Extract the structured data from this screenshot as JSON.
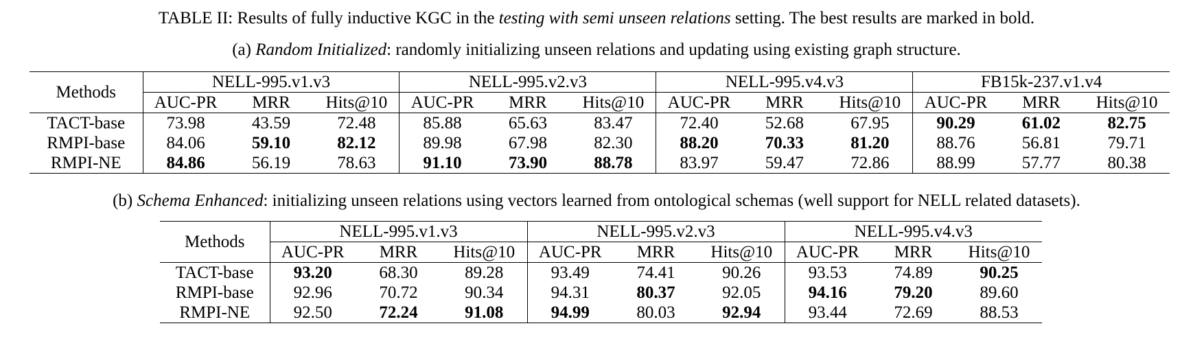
{
  "caption": {
    "prefix": "TABLE II: Results of fully inductive KGC in the ",
    "emphasis": "testing with semi unseen relations",
    "suffix": " setting. The best results are marked in bold."
  },
  "tables": [
    {
      "label": "(a) ",
      "emphasis": "Random Initialized",
      "description": ": randomly initializing unseen relations and updating using existing graph structure.",
      "methods_header": "Methods",
      "groups": [
        {
          "name": "NELL-995.v1.v3",
          "metrics": [
            "AUC-PR",
            "MRR",
            "Hits@10"
          ]
        },
        {
          "name": "NELL-995.v2.v3",
          "metrics": [
            "AUC-PR",
            "MRR",
            "Hits@10"
          ]
        },
        {
          "name": "NELL-995.v4.v3",
          "metrics": [
            "AUC-PR",
            "MRR",
            "Hits@10"
          ]
        },
        {
          "name": "FB15k-237.v1.v4",
          "metrics": [
            "AUC-PR",
            "MRR",
            "Hits@10"
          ]
        }
      ],
      "rows": [
        {
          "method": "TACT-base",
          "values": [
            "73.98",
            "43.59",
            "72.48",
            "85.88",
            "65.63",
            "83.47",
            "72.40",
            "52.68",
            "67.95",
            "90.29",
            "61.02",
            "82.75"
          ],
          "bold": [
            9,
            10,
            11
          ]
        },
        {
          "method": "RMPI-base",
          "values": [
            "84.06",
            "59.10",
            "82.12",
            "89.98",
            "67.98",
            "82.30",
            "88.20",
            "70.33",
            "81.20",
            "88.76",
            "56.81",
            "79.71"
          ],
          "bold": [
            1,
            2,
            6,
            7,
            8
          ]
        },
        {
          "method": "RMPI-NE",
          "values": [
            "84.86",
            "56.19",
            "78.63",
            "91.10",
            "73.90",
            "88.78",
            "83.97",
            "59.47",
            "72.86",
            "88.99",
            "57.77",
            "80.38"
          ],
          "bold": [
            0,
            3,
            4,
            5
          ]
        }
      ]
    },
    {
      "label": "(b) ",
      "emphasis": "Schema Enhanced",
      "description": ": initializing unseen relations using vectors learned from ontological schemas (well support for NELL related datasets).",
      "methods_header": "Methods",
      "groups": [
        {
          "name": "NELL-995.v1.v3",
          "metrics": [
            "AUC-PR",
            "MRR",
            "Hits@10"
          ]
        },
        {
          "name": "NELL-995.v2.v3",
          "metrics": [
            "AUC-PR",
            "MRR",
            "Hits@10"
          ]
        },
        {
          "name": "NELL-995.v4.v3",
          "metrics": [
            "AUC-PR",
            "MRR",
            "Hits@10"
          ]
        }
      ],
      "rows": [
        {
          "method": "TACT-base",
          "values": [
            "93.20",
            "68.30",
            "89.28",
            "93.49",
            "74.41",
            "90.26",
            "93.53",
            "74.89",
            "90.25"
          ],
          "bold": [
            0,
            8
          ]
        },
        {
          "method": "RMPI-base",
          "values": [
            "92.96",
            "70.72",
            "90.34",
            "94.31",
            "80.37",
            "92.05",
            "94.16",
            "79.20",
            "89.60"
          ],
          "bold": [
            4,
            6,
            7
          ]
        },
        {
          "method": "RMPI-NE",
          "values": [
            "92.50",
            "72.24",
            "91.08",
            "94.99",
            "80.03",
            "92.94",
            "93.44",
            "72.69",
            "88.53"
          ],
          "bold": [
            1,
            2,
            3,
            5
          ]
        }
      ]
    }
  ]
}
